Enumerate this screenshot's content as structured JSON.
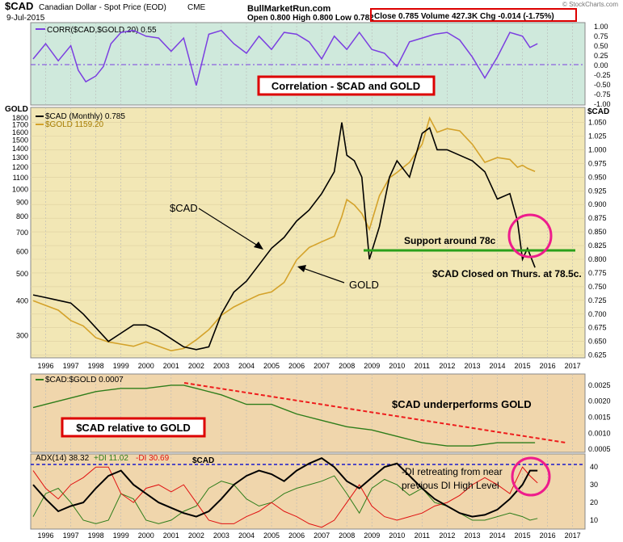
{
  "header": {
    "symbol": "$CAD",
    "description": "Canadian Dollar - Spot Price (EOD)",
    "exchange": "CME",
    "date": "9-Jul-2015",
    "site": "BullMarketRun.com",
    "ohlc": "Open 0.800   High 0.800   Low 0.782",
    "quote": "Close 0.785  Volume 427.3K  Chg -0.014 (-1.75%)",
    "watermark": "© StockCharts.com"
  },
  "colors": {
    "cad": "#000000",
    "gold": "#d4a22a",
    "corr": "#7b3fe0",
    "ratio": "#2e7d1a",
    "plusDI": "#2e7d1a",
    "minusDI": "#e01010",
    "adx": "#000000",
    "support": "#2aa01a",
    "highlight": "#ee1c8c",
    "callout": "#dd0000",
    "trend": "#ee1c1c",
    "dashed": "#1a1acc"
  },
  "panel1": {
    "legend": "CORR($CAD,$GOLD,20) 0.55",
    "yTicks": [
      "1.00",
      "0.75",
      "0.50",
      "0.25",
      "0.00",
      "-0.25",
      "-0.50",
      "-0.75",
      "-1.00"
    ],
    "callout": "Correlation - $CAD and GOLD"
  },
  "panel2": {
    "leftAxisTitle": "GOLD",
    "rightAxisTitle": "$CAD",
    "legendCad": "$CAD (Monthly) 0.785",
    "legendGold": "$GOLD 1159.20",
    "leftTicks": [
      "1800",
      "1700",
      "1600",
      "1500",
      "1400",
      "1300",
      "1200",
      "1100",
      "1000",
      "900",
      "800",
      "700",
      "600",
      "500",
      "400",
      "300"
    ],
    "rightTicks": [
      "1.050",
      "1.025",
      "1.000",
      "0.975",
      "0.950",
      "0.925",
      "0.900",
      "0.875",
      "0.850",
      "0.825",
      "0.800",
      "0.775",
      "0.750",
      "0.725",
      "0.700",
      "0.675",
      "0.650",
      "0.625"
    ],
    "annoCad": "$CAD",
    "annoGold": "GOLD",
    "annoSupport": "Support around 78c",
    "annoClosed": "$CAD Closed on Thurs. at 78.5c."
  },
  "panel3": {
    "legend": "$CAD:$GOLD 0.0007",
    "yTicks": [
      "0.0025",
      "0.0020",
      "0.0015",
      "0.0010",
      "0.0005"
    ],
    "anno": "$CAD underperforms GOLD",
    "callout": "$CAD relative to GOLD"
  },
  "panel4": {
    "legendAdx": "ADX(14) 38.32",
    "legendPlus": "+DI 11.02",
    "legendMinus": "-DI 30.69",
    "symbolOverlay": "$CAD",
    "yTicks": [
      "40",
      "30",
      "20",
      "10"
    ],
    "anno1": "-DI retreating from near",
    "anno2": "previous DI High Level"
  },
  "xAxis": {
    "years": [
      "1996",
      "1997",
      "1998",
      "1999",
      "2000",
      "2001",
      "2002",
      "2003",
      "2004",
      "2005",
      "2006",
      "2007",
      "2008",
      "2009",
      "2010",
      "2011",
      "2012",
      "2013",
      "2014",
      "2015",
      "2016",
      "2017"
    ]
  },
  "chart_data": [
    {
      "type": "line",
      "title": "CORR($CAD,$GOLD,20) 0.55",
      "ylim": [
        -1.0,
        1.0
      ],
      "x": [
        1995.5,
        1996,
        1996.5,
        1997,
        1997.3,
        1997.6,
        1998,
        1998.3,
        1998.6,
        1999,
        1999.5,
        2000,
        2000.5,
        2001,
        2001.5,
        2002,
        2002.5,
        2003,
        2003.5,
        2004,
        2004.5,
        2005,
        2005.5,
        2006,
        2006.5,
        2007,
        2007.5,
        2008,
        2008.5,
        2009,
        2009.5,
        2010,
        2010.5,
        2011,
        2011.5,
        2012,
        2012.5,
        2013,
        2013.5,
        2014,
        2014.5,
        2015,
        2015.3,
        2015.6
      ],
      "series": [
        {
          "name": "CORR($CAD,$GOLD,20)",
          "values": [
            0.15,
            0.55,
            0.1,
            0.5,
            -0.15,
            -0.45,
            -0.3,
            -0.05,
            0.55,
            0.85,
            0.9,
            0.75,
            0.7,
            0.35,
            0.7,
            -0.55,
            0.8,
            0.9,
            0.55,
            0.3,
            0.75,
            0.4,
            0.85,
            0.8,
            0.6,
            0.15,
            0.75,
            0.4,
            0.85,
            0.4,
            0.3,
            -0.05,
            0.6,
            0.7,
            0.8,
            0.85,
            0.65,
            0.2,
            -0.35,
            0.2,
            0.85,
            0.75,
            0.45,
            0.55
          ]
        }
      ]
    },
    {
      "type": "line",
      "title": "$CAD (Monthly) and $GOLD",
      "x": [
        1995.5,
        1996,
        1996.5,
        1997,
        1997.5,
        1998,
        1998.5,
        1999,
        1999.5,
        2000,
        2000.5,
        2001,
        2001.5,
        2002,
        2002.5,
        2003,
        2003.5,
        2004,
        2004.5,
        2005,
        2005.5,
        2006,
        2006.5,
        2007,
        2007.5,
        2007.8,
        2008,
        2008.3,
        2008.6,
        2008.9,
        2009.3,
        2009.7,
        2010,
        2010.5,
        2011,
        2011.3,
        2011.6,
        2012,
        2012.5,
        2013,
        2013.5,
        2014,
        2014.5,
        2014.8,
        2015,
        2015.2,
        2015.5
      ],
      "series": [
        {
          "name": "$CAD (Monthly)",
          "axis": "right",
          "ylim": [
            0.62,
            1.07
          ],
          "values": [
            0.735,
            0.73,
            0.725,
            0.72,
            0.7,
            0.675,
            0.65,
            0.665,
            0.68,
            0.68,
            0.67,
            0.655,
            0.64,
            0.635,
            0.64,
            0.7,
            0.74,
            0.76,
            0.79,
            0.82,
            0.84,
            0.87,
            0.89,
            0.92,
            0.96,
            1.05,
            0.99,
            0.98,
            0.95,
            0.8,
            0.86,
            0.95,
            0.98,
            0.95,
            1.03,
            1.04,
            1.0,
            1.0,
            0.99,
            0.98,
            0.96,
            0.91,
            0.92,
            0.87,
            0.8,
            0.82,
            0.785
          ]
        },
        {
          "name": "$GOLD",
          "axis": "left",
          "ylim": [
            250,
            1900
          ],
          "values": [
            400,
            385,
            370,
            340,
            325,
            295,
            285,
            280,
            275,
            285,
            275,
            265,
            270,
            290,
            315,
            355,
            380,
            400,
            420,
            430,
            465,
            560,
            620,
            650,
            680,
            800,
            920,
            880,
            820,
            720,
            950,
            1100,
            1150,
            1250,
            1450,
            1800,
            1600,
            1650,
            1620,
            1450,
            1250,
            1300,
            1280,
            1200,
            1220,
            1190,
            1159
          ]
        }
      ]
    },
    {
      "type": "line",
      "title": "$CAD:$GOLD 0.0007",
      "ylim": [
        0.0004,
        0.0028
      ],
      "x": [
        1995.5,
        1996,
        1997,
        1998,
        1999,
        2000,
        2001,
        2001.5,
        2002,
        2003,
        2004,
        2005,
        2006,
        2007,
        2008,
        2009,
        2010,
        2011,
        2012,
        2013,
        2014,
        2015,
        2015.5
      ],
      "series": [
        {
          "name": "$CAD:$GOLD",
          "values": [
            0.0018,
            0.0019,
            0.0021,
            0.0023,
            0.0024,
            0.0024,
            0.0025,
            0.0025,
            0.0024,
            0.0022,
            0.0019,
            0.0019,
            0.0016,
            0.0014,
            0.0012,
            0.0011,
            0.0009,
            0.0007,
            0.0006,
            0.0006,
            0.0007,
            0.0007,
            0.0007
          ]
        }
      ]
    },
    {
      "type": "line",
      "title": "ADX(14) 38.32 +DI 11.02 -DI 30.69",
      "ylim": [
        5,
        46
      ],
      "x": [
        1995.5,
        1996,
        1996.5,
        1997,
        1997.5,
        1998,
        1998.5,
        1999,
        1999.5,
        2000,
        2000.5,
        2001,
        2001.5,
        2002,
        2002.5,
        2003,
        2003.5,
        2004,
        2004.5,
        2005,
        2005.5,
        2006,
        2006.5,
        2007,
        2007.5,
        2008,
        2008.5,
        2009,
        2009.5,
        2010,
        2010.5,
        2011,
        2011.5,
        2012,
        2012.5,
        2013,
        2013.5,
        2014,
        2014.5,
        2015,
        2015.3,
        2015.6
      ],
      "series": [
        {
          "name": "ADX(14)",
          "values": [
            30,
            22,
            15,
            18,
            20,
            28,
            35,
            38,
            30,
            25,
            20,
            17,
            14,
            12,
            15,
            22,
            30,
            35,
            38,
            36,
            32,
            38,
            42,
            45,
            40,
            32,
            28,
            34,
            40,
            42,
            35,
            28,
            22,
            18,
            14,
            12,
            13,
            16,
            22,
            30,
            38,
            38
          ]
        },
        {
          "name": "+DI",
          "values": [
            12,
            25,
            28,
            20,
            10,
            8,
            10,
            25,
            22,
            10,
            8,
            10,
            15,
            18,
            28,
            32,
            30,
            22,
            18,
            20,
            25,
            28,
            30,
            32,
            35,
            25,
            14,
            28,
            33,
            30,
            24,
            28,
            20,
            18,
            14,
            10,
            10,
            12,
            14,
            12,
            10,
            11
          ]
        },
        {
          "name": "-DI",
          "values": [
            38,
            28,
            22,
            30,
            34,
            40,
            40,
            25,
            20,
            28,
            30,
            26,
            30,
            20,
            10,
            8,
            8,
            12,
            15,
            20,
            15,
            12,
            8,
            6,
            10,
            20,
            30,
            18,
            12,
            10,
            12,
            14,
            18,
            20,
            24,
            30,
            34,
            30,
            25,
            40,
            35,
            31
          ]
        }
      ]
    }
  ]
}
